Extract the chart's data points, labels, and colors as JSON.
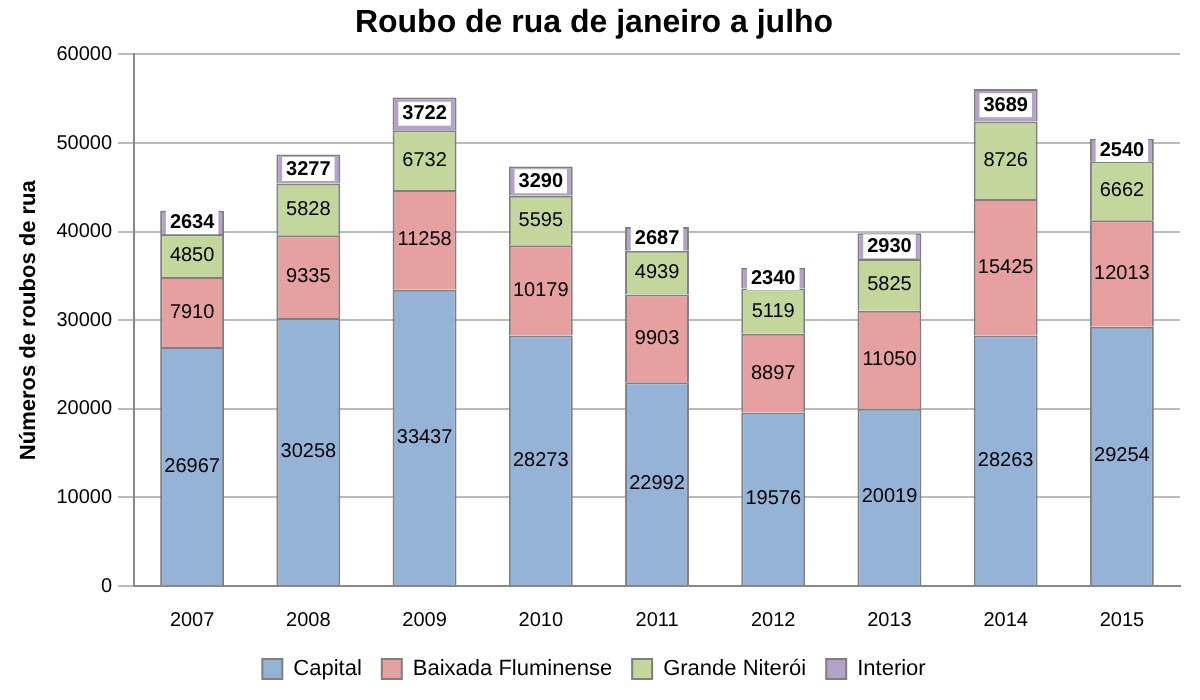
{
  "chart_data": {
    "type": "bar",
    "title": "Roubo de rua de janeiro a julho",
    "ylabel": "Números de roubos de rua",
    "categories": [
      "2007",
      "2008",
      "2009",
      "2010",
      "2011",
      "2012",
      "2013",
      "2014",
      "2015"
    ],
    "series": [
      {
        "name": "Capital",
        "color": "#95b3d7",
        "values": [
          26967,
          30258,
          33437,
          28273,
          22992,
          19576,
          20019,
          28263,
          29254
        ]
      },
      {
        "name": "Baixada Fluminense",
        "color": "#e6a0a0",
        "values": [
          7910,
          9335,
          11258,
          10179,
          9903,
          8897,
          11050,
          15425,
          12013
        ]
      },
      {
        "name": "Grande Niterói",
        "color": "#c3d69b",
        "values": [
          4850,
          5828,
          6732,
          5595,
          4939,
          5119,
          5825,
          8726,
          6662
        ]
      },
      {
        "name": "Interior",
        "color": "#b3a2c7",
        "values": [
          2634,
          3277,
          3722,
          3290,
          2687,
          2340,
          2930,
          3689,
          2540
        ]
      }
    ],
    "stacked": true,
    "ylim": [
      0,
      60000
    ],
    "yticks": [
      0,
      10000,
      20000,
      30000,
      40000,
      50000,
      60000
    ],
    "grid": "y",
    "legend": "bottom",
    "data_labels": true
  }
}
